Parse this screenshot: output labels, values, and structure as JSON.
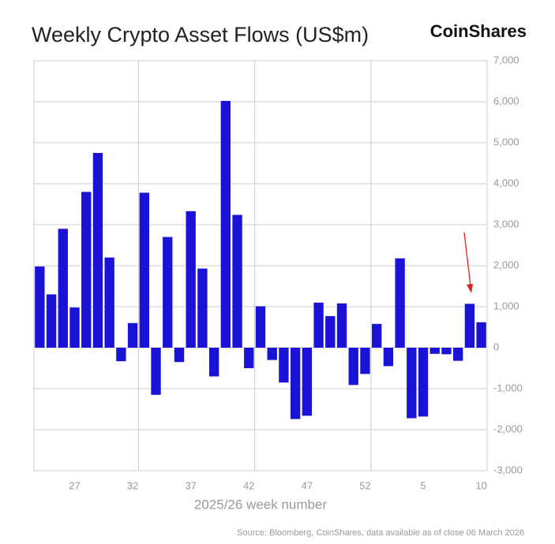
{
  "chart_data": {
    "type": "bar",
    "title": "Weekly Crypto Asset Flows (US$m)",
    "brand": "CoinShares",
    "x_label": "2025/26 week number",
    "source": "Source: Bloomberg, CoinShares, data available as of close 06 March 2026",
    "categories": [
      null,
      null,
      null,
      "27",
      null,
      null,
      null,
      null,
      "32",
      null,
      null,
      null,
      null,
      "37",
      null,
      null,
      null,
      null,
      "42",
      null,
      null,
      null,
      null,
      "47",
      null,
      null,
      null,
      null,
      "52",
      null,
      null,
      null,
      null,
      "5",
      null,
      null,
      null,
      null,
      "10"
    ],
    "values": [
      1980,
      1300,
      2900,
      980,
      3800,
      4750,
      2200,
      -330,
      600,
      3780,
      -1150,
      2700,
      -350,
      3330,
      1930,
      -700,
      6020,
      3240,
      -500,
      1010,
      -300,
      -850,
      -1740,
      -1660,
      1100,
      770,
      1080,
      -910,
      -640,
      580,
      -450,
      2180,
      -1720,
      -1680,
      -150,
      -160,
      -320,
      1070,
      620
    ],
    "color": "#1a12d6",
    "ylim": [
      -3000,
      7000
    ],
    "yticks": [
      {
        "value": -3000,
        "label": "-3,000"
      },
      {
        "value": -2000,
        "label": "-2,000"
      },
      {
        "value": -1000,
        "label": "-1,000"
      },
      0,
      {
        "value": 1000,
        "label": "1,000"
      },
      {
        "value": 2000,
        "label": "2,000"
      },
      {
        "value": 3000,
        "label": "3,000"
      },
      {
        "value": 4000,
        "label": "4,000"
      },
      {
        "value": 5000,
        "label": "5,000"
      },
      {
        "value": 6000,
        "label": "6,000"
      },
      {
        "value": 7000,
        "label": "7,000"
      }
    ],
    "grid": true
  }
}
